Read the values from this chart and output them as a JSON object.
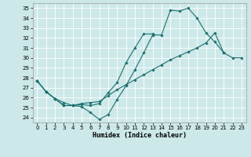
{
  "xlabel": "Humidex (Indice chaleur)",
  "bg_color": "#cde8e8",
  "grid_color": "#ffffff",
  "line_color": "#1a7070",
  "xlim": [
    -0.5,
    23.5
  ],
  "ylim": [
    23.5,
    35.5
  ],
  "xticks": [
    0,
    1,
    2,
    3,
    4,
    5,
    6,
    7,
    8,
    9,
    10,
    11,
    12,
    13,
    14,
    15,
    16,
    17,
    18,
    19,
    20,
    21,
    22,
    23
  ],
  "yticks": [
    24,
    25,
    26,
    27,
    28,
    29,
    30,
    31,
    32,
    33,
    34,
    35
  ],
  "line1_x": [
    0,
    1,
    2,
    3,
    4,
    5,
    6,
    7,
    8,
    9,
    10,
    11,
    12,
    13,
    14,
    15,
    16,
    17,
    18,
    19,
    20,
    21
  ],
  "line1_y": [
    27.7,
    26.6,
    25.9,
    25.2,
    25.2,
    25.1,
    24.5,
    23.8,
    24.3,
    25.8,
    27.2,
    28.8,
    30.5,
    32.3,
    32.3,
    34.8,
    34.7,
    35.0,
    34.0,
    32.5,
    31.6,
    30.5
  ],
  "line2_x": [
    0,
    1,
    2,
    3,
    4,
    5,
    6,
    7,
    8,
    9,
    10,
    11,
    12,
    13
  ],
  "line2_y": [
    27.7,
    26.6,
    25.9,
    25.5,
    25.2,
    25.3,
    25.2,
    25.4,
    26.5,
    27.5,
    29.5,
    31.0,
    32.4,
    32.4
  ],
  "line3_x": [
    0,
    1,
    2,
    3,
    4,
    5,
    6,
    7,
    8,
    9,
    10,
    11,
    12,
    13,
    14,
    15,
    16,
    17,
    18,
    19,
    20,
    21,
    22,
    23
  ],
  "line3_y": [
    27.7,
    26.6,
    25.9,
    25.2,
    25.2,
    25.4,
    25.5,
    25.6,
    26.2,
    26.8,
    27.3,
    27.8,
    28.3,
    28.8,
    29.3,
    29.8,
    30.2,
    30.6,
    31.0,
    31.5,
    32.5,
    30.5,
    30.0,
    30.0
  ]
}
